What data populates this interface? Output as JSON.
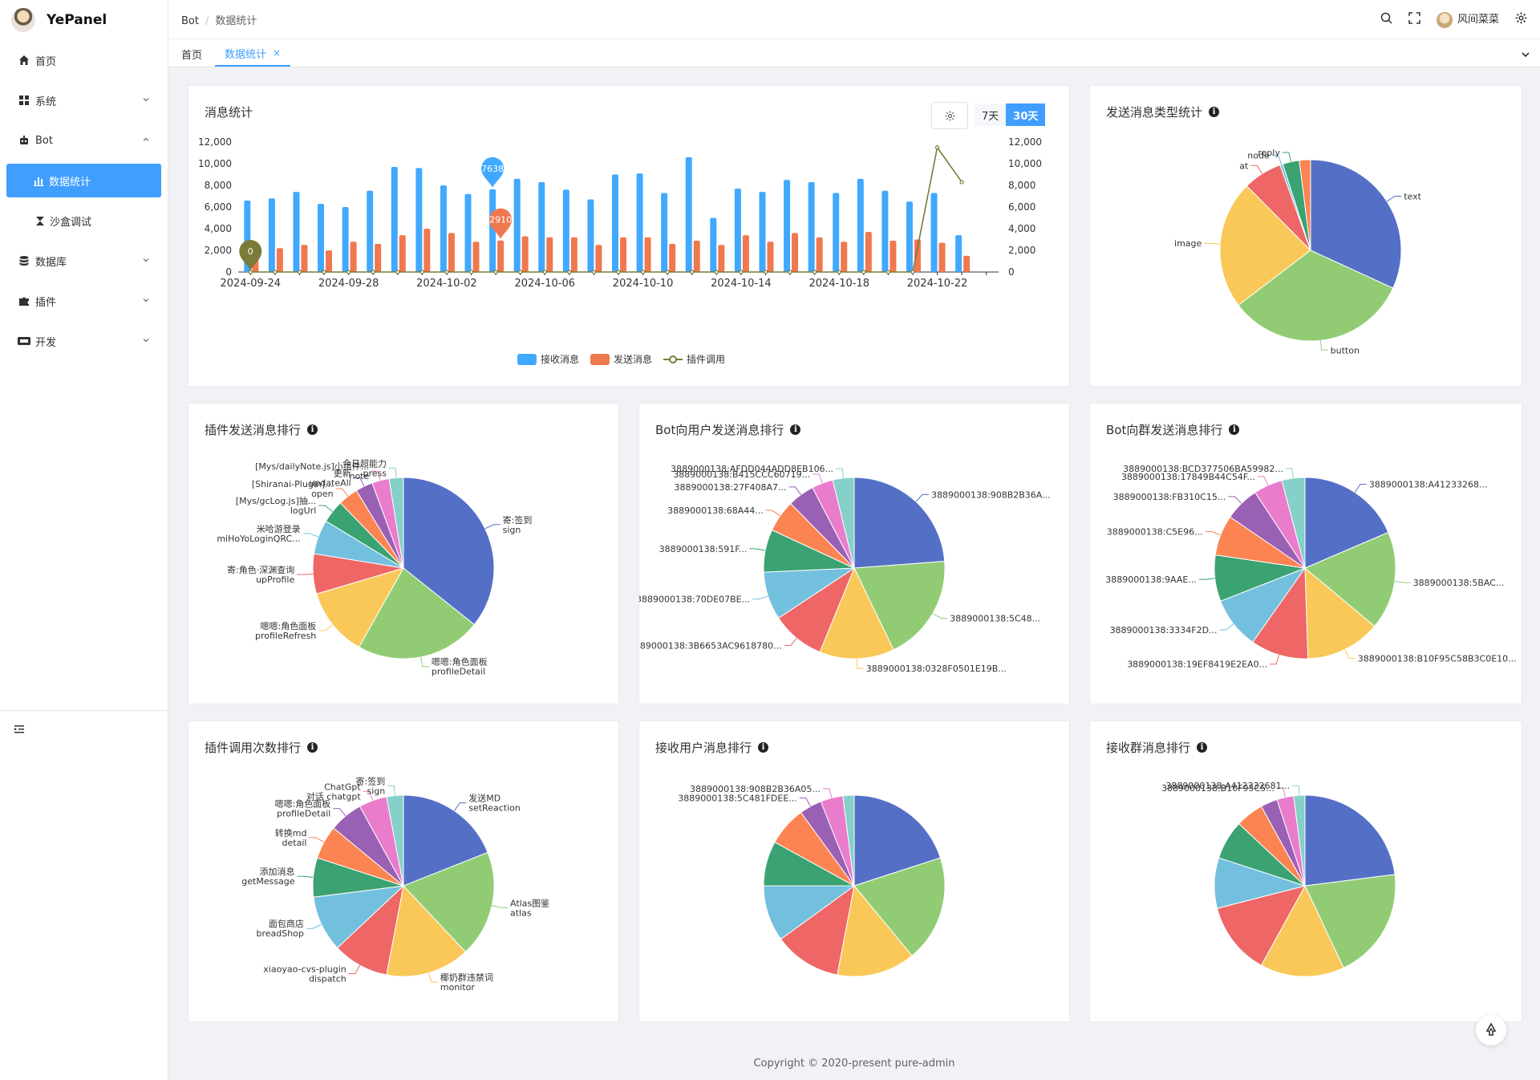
{
  "app": {
    "name": "YePanel"
  },
  "sidebar": {
    "items": [
      {
        "label": "首页"
      },
      {
        "label": "系统"
      },
      {
        "label": "Bot"
      },
      {
        "label": "数据统计"
      },
      {
        "label": "沙盒调试"
      },
      {
        "label": "数据库"
      },
      {
        "label": "插件"
      },
      {
        "label": "开发"
      }
    ]
  },
  "header": {
    "breadcrumb": [
      "Bot",
      "数据统计"
    ],
    "user": "风间菜菜"
  },
  "tabs": [
    {
      "label": "首页"
    },
    {
      "label": "数据统计",
      "close": "×"
    }
  ],
  "cards": {
    "message_stats": {
      "title": "消息统计",
      "range_7": "7天",
      "range_30": "30天",
      "legend": [
        "接收消息",
        "发送消息",
        "插件调用"
      ]
    },
    "send_type": {
      "title": "发送消息类型统计"
    },
    "plugin_send_rank": {
      "title": "插件发送消息排行"
    },
    "bot_user_rank": {
      "title": "Bot向用户发送消息排行"
    },
    "bot_group_rank": {
      "title": "Bot向群发送消息排行"
    },
    "plugin_call_rank": {
      "title": "插件调用次数排行"
    },
    "recv_user_rank": {
      "title": "接收用户消息排行"
    },
    "recv_group_rank": {
      "title": "接收群消息排行"
    }
  },
  "footer": "Copyright © 2020-present pure-admin",
  "colors": {
    "accent": "#409eff",
    "pie": [
      "#5470c6",
      "#91cc75",
      "#fac858",
      "#ee6666",
      "#73c0de",
      "#3ba272",
      "#fc8452",
      "#9a60b4",
      "#ea7ccc",
      "#85d0c8"
    ]
  },
  "chart_data": [
    {
      "type": "bar",
      "title": "消息统计",
      "x": [
        "2024-09-24",
        "2024-09-25",
        "2024-09-26",
        "2024-09-27",
        "2024-09-28",
        "2024-09-29",
        "2024-09-30",
        "2024-10-01",
        "2024-10-02",
        "2024-10-03",
        "2024-10-04",
        "2024-10-05",
        "2024-10-06",
        "2024-10-07",
        "2024-10-08",
        "2024-10-09",
        "2024-10-10",
        "2024-10-11",
        "2024-10-12",
        "2024-10-13",
        "2024-10-14",
        "2024-10-15",
        "2024-10-16",
        "2024-10-17",
        "2024-10-18",
        "2024-10-19",
        "2024-10-20",
        "2024-10-21",
        "2024-10-22",
        "2024-10-23",
        "2024-10-24"
      ],
      "x_tick_labels": [
        "2024-09-24",
        "2024-09-28",
        "2024-10-02",
        "2024-10-06",
        "2024-10-10",
        "2024-10-14",
        "2024-10-18",
        "2024-10-22"
      ],
      "y_ticks": [
        "0",
        "2,000",
        "4,000",
        "6,000",
        "8,000",
        "10,000",
        "12,000"
      ],
      "ylim": [
        0,
        12000
      ],
      "series": [
        {
          "name": "接收消息",
          "type": "bar",
          "color": "#40a9ff",
          "values": [
            6600,
            6800,
            7400,
            6300,
            6000,
            7500,
            9700,
            9600,
            8000,
            7200,
            7638,
            8600,
            8300,
            7600,
            6700,
            9000,
            9100,
            7300,
            10600,
            5000,
            7700,
            7400,
            8500,
            8300,
            7300,
            8600,
            7500,
            6500,
            7300,
            3400,
            0
          ]
        },
        {
          "name": "发送消息",
          "type": "bar",
          "color": "#f0784f",
          "values": [
            1400,
            2200,
            2500,
            2000,
            2800,
            2600,
            3400,
            4000,
            3600,
            2800,
            2910,
            3300,
            3200,
            3200,
            2500,
            3200,
            3200,
            2600,
            2900,
            2500,
            3400,
            2800,
            3600,
            3200,
            2800,
            3700,
            2900,
            3000,
            2700,
            1500,
            0
          ]
        },
        {
          "name": "插件调用",
          "type": "line",
          "color": "#7b7b3a",
          "values": [
            0,
            0,
            0,
            0,
            0,
            0,
            0,
            0,
            0,
            0,
            0,
            0,
            0,
            0,
            0,
            0,
            0,
            0,
            0,
            0,
            0,
            0,
            0,
            0,
            0,
            0,
            0,
            0,
            11500,
            8300,
            null
          ]
        }
      ],
      "markers": [
        {
          "series": "接收消息",
          "value": "7638"
        },
        {
          "series": "发送消息",
          "value": "2910"
        },
        {
          "series": "插件调用",
          "value": "0"
        }
      ]
    },
    {
      "type": "pie",
      "title": "发送消息类型统计",
      "slices": [
        {
          "name": "text",
          "value": 32
        },
        {
          "name": "button",
          "value": 33
        },
        {
          "name": "image",
          "value": 23
        },
        {
          "name": "at",
          "value": 7
        },
        {
          "name": "node",
          "value": 0.5
        },
        {
          "name": "reply",
          "value": 3
        },
        {
          "name": "",
          "value": 2
        }
      ]
    },
    {
      "type": "pie",
      "title": "插件发送消息排行",
      "slices": [
        {
          "name": "寄:签到 sign",
          "value": 35
        },
        {
          "name": "嗯嗯:角色面板 profileDetail",
          "value": 22
        },
        {
          "name": "嗯嗯:角色面板 profileRefresh",
          "value": 12
        },
        {
          "name": "寄:角色·深渊查询 upProfile",
          "value": 7
        },
        {
          "name": "米哈游登录 miHoYoLoginQRC...",
          "value": 6
        },
        {
          "name": "[Mys/gcLog.js]抽... logUrl",
          "value": 4
        },
        {
          "name": "[Shiranai-Plugin]... open",
          "value": 3.5
        },
        {
          "name": "更新 updateAll",
          "value": 3
        },
        {
          "name": "[Mys/dailyNote.js]小组件... note",
          "value": 3
        },
        {
          "name": "今日超能力 press",
          "value": 2.5
        }
      ]
    },
    {
      "type": "pie",
      "title": "Bot向用户发送消息排行",
      "slices": [
        {
          "name": "3889000138:908B2B36A...",
          "value": 25
        },
        {
          "name": "3889000138:5C48...",
          "value": 20
        },
        {
          "name": "3889000138:0328F0501E19B...",
          "value": 14
        },
        {
          "name": "3889000138:3B6653AC9618780...",
          "value": 10
        },
        {
          "name": "3889000138:70DE07BE...",
          "value": 9
        },
        {
          "name": "3889000138:591F...",
          "value": 8
        },
        {
          "name": "3889000138:68A44...",
          "value": 6
        },
        {
          "name": "3889000138:27F408A7...",
          "value": 5
        },
        {
          "name": "3889000138:B415CCC60719...",
          "value": 4
        },
        {
          "name": "3889000138:AFDD044ADD8EB106...",
          "value": 4
        }
      ]
    },
    {
      "type": "pie",
      "title": "Bot向群发送消息排行",
      "slices": [
        {
          "name": "3889000138:A41233268...",
          "value": 18
        },
        {
          "name": "3889000138:5BAC...",
          "value": 17
        },
        {
          "name": "3889000138:B10F95C58B3C0E10...",
          "value": 13
        },
        {
          "name": "3889000138:19EF8419E2EA0...",
          "value": 10
        },
        {
          "name": "3889000138:3334F2D...",
          "value": 9
        },
        {
          "name": "3889000138:9AAE...",
          "value": 8
        },
        {
          "name": "3889000138:C5E96...",
          "value": 7
        },
        {
          "name": "3889000138:FB310C15...",
          "value": 6
        },
        {
          "name": "3889000138:17849B44C54F...",
          "value": 5
        },
        {
          "name": "3889000138:BCD377506BA59982...",
          "value": 4
        }
      ]
    },
    {
      "type": "pie",
      "title": "插件调用次数排行",
      "slices": [
        {
          "name": "发送MD setReaction",
          "value": 19
        },
        {
          "name": "Atlas图鉴 atlas",
          "value": 19
        },
        {
          "name": "椰奶群违禁词 monitor",
          "value": 15
        },
        {
          "name": "xiaoyao-cvs-plugin dispatch",
          "value": 10
        },
        {
          "name": "面包商店 breadShop",
          "value": 10
        },
        {
          "name": "添加消息 getMessage",
          "value": 7
        },
        {
          "name": "转换md detail",
          "value": 6
        },
        {
          "name": "嗯嗯:角色面板 profileDetail",
          "value": 6
        },
        {
          "name": "ChatGpt 对话 chatgpt",
          "value": 5
        },
        {
          "name": "寄:签到 sign",
          "value": 3
        }
      ]
    },
    {
      "type": "pie",
      "title": "接收用户消息排行",
      "slices": [
        {
          "name": "",
          "value": 20
        },
        {
          "name": "",
          "value": 19
        },
        {
          "name": "",
          "value": 14
        },
        {
          "name": "",
          "value": 12
        },
        {
          "name": "",
          "value": 10
        },
        {
          "name": "",
          "value": 8
        },
        {
          "name": "",
          "value": 7
        },
        {
          "name": "3889000138:5C481FDEE...",
          "value": 4
        },
        {
          "name": "3889000138:908B2B36A05...",
          "value": 4
        },
        {
          "name": "",
          "value": 2
        }
      ]
    },
    {
      "type": "pie",
      "title": "接收群消息排行",
      "slices": [
        {
          "name": "",
          "value": 23
        },
        {
          "name": "",
          "value": 20
        },
        {
          "name": "",
          "value": 15
        },
        {
          "name": "",
          "value": 13
        },
        {
          "name": "",
          "value": 9
        },
        {
          "name": "",
          "value": 7
        },
        {
          "name": "",
          "value": 5
        },
        {
          "name": "",
          "value": 3
        },
        {
          "name": "3889000138:B10F95C5...",
          "value": 3
        },
        {
          "name": "3889000138:A412332681...",
          "value": 2
        }
      ]
    }
  ]
}
